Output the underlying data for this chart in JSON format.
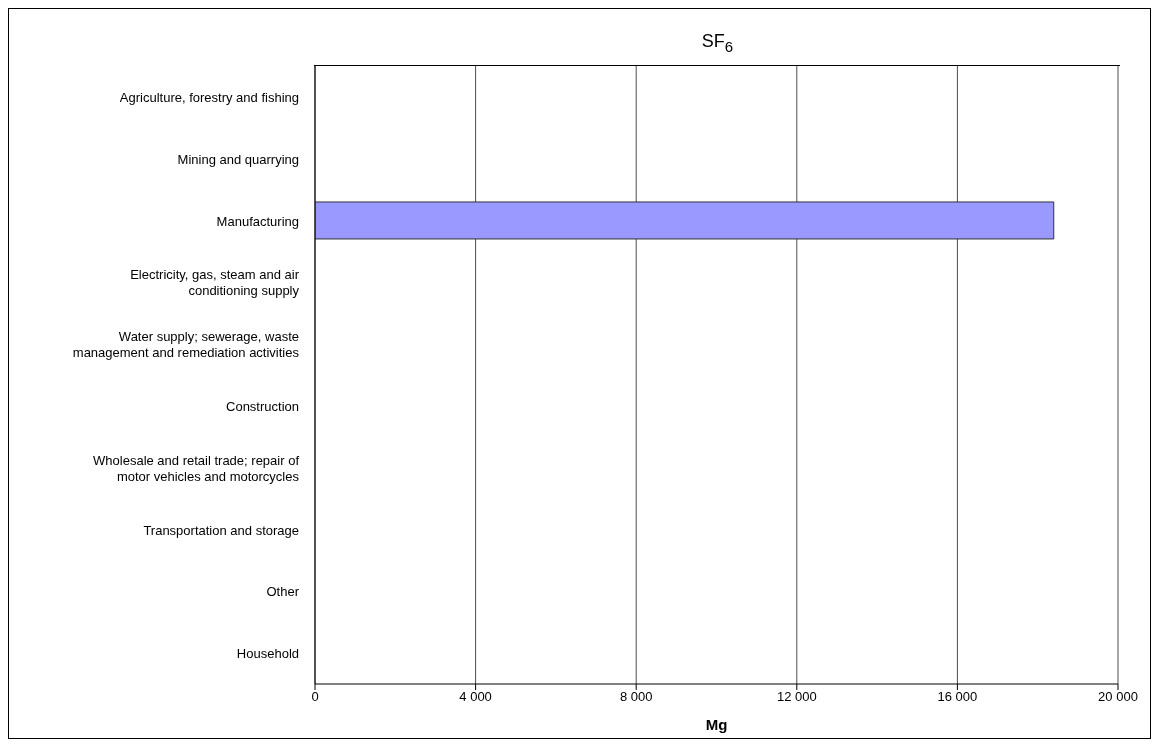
{
  "chart_data": {
    "type": "bar",
    "orientation": "horizontal",
    "title": "SF$_{6}$",
    "xlabel": "Mg",
    "categories": [
      "Agriculture, forestry and fishing",
      "Mining and quarrying",
      "Manufacturing",
      "Electricity, gas, steam and air conditioning supply",
      "Water supply; sewerage, waste management and remediation activities",
      "Construction",
      "Wholesale and retail trade; repair of motor vehicles and motorcycles",
      "Transportation and storage",
      "Other",
      "Household"
    ],
    "values": [
      0,
      0,
      18400,
      0,
      0,
      0,
      0,
      0,
      0,
      0
    ],
    "color": "#9999ff",
    "xlim": [
      0,
      20000
    ],
    "xticks": [
      0,
      {
        "value": 4000,
        "label": "4 000"
      },
      {
        "value": 8000,
        "label": "8 000"
      },
      {
        "value": 12000,
        "label": "12 000"
      },
      {
        "value": 16000,
        "label": "16 000"
      },
      {
        "value": 20000,
        "label": "20 000"
      }
    ],
    "grid": "x"
  }
}
